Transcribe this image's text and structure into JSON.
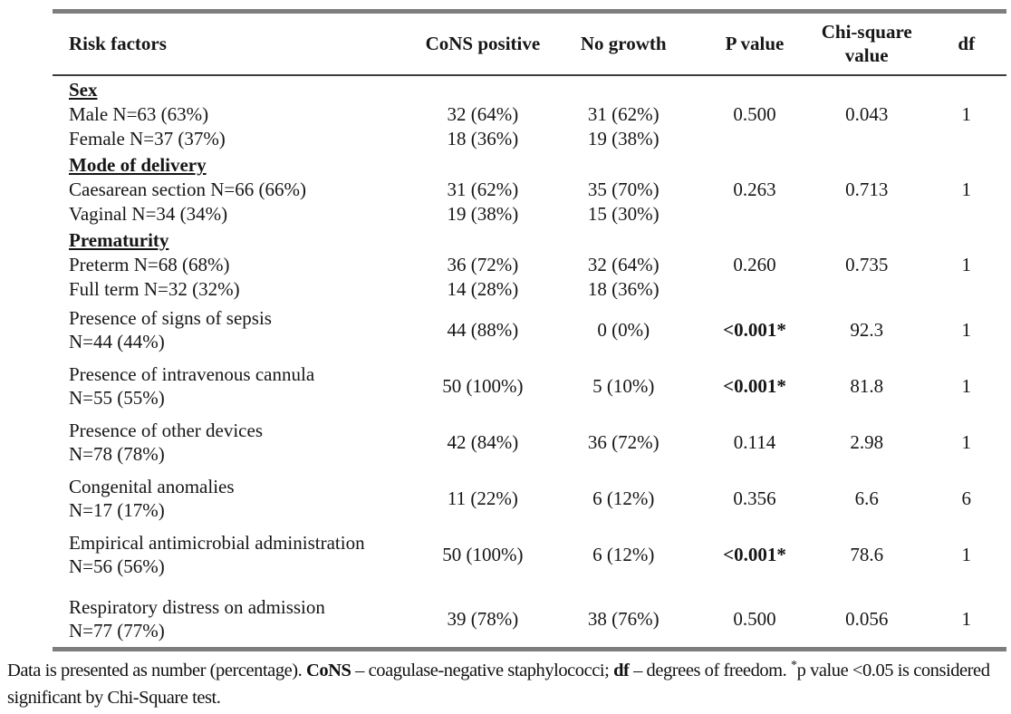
{
  "table": {
    "columns": [
      "Risk factors",
      "CoNS positive",
      "No growth",
      "P value",
      "Chi-square value",
      "df"
    ],
    "rows": [
      {
        "type": "section",
        "label": "Sex"
      },
      {
        "type": "data",
        "label": "Male N=63 (63%)",
        "cons": "32 (64%)",
        "nogrowth": "31 (62%)",
        "p": "0.500",
        "chi": "0.043",
        "df": "1"
      },
      {
        "type": "data",
        "label": "Female N=37 (37%)",
        "cons": "18 (36%)",
        "nogrowth": "19 (38%)",
        "p": "",
        "chi": "",
        "df": ""
      },
      {
        "type": "section",
        "label": "Mode of delivery"
      },
      {
        "type": "data",
        "label": "Caesarean section N=66 (66%)",
        "cons": "31 (62%)",
        "nogrowth": "35 (70%)",
        "p": "0.263",
        "chi": "0.713",
        "df": "1"
      },
      {
        "type": "data",
        "label": "Vaginal N=34 (34%)",
        "cons": "19 (38%)",
        "nogrowth": "15 (30%)",
        "p": "",
        "chi": "",
        "df": ""
      },
      {
        "type": "section",
        "label": "Prematurity"
      },
      {
        "type": "data",
        "label": "Preterm N=68 (68%)",
        "cons": "36 (72%)",
        "nogrowth": "32 (64%)",
        "p": "0.260",
        "chi": "0.735",
        "df": "1"
      },
      {
        "type": "data",
        "label": "Full term N=32 (32%)",
        "cons": "14 (28%)",
        "nogrowth": "18 (36%)",
        "p": "",
        "chi": "",
        "df": ""
      },
      {
        "type": "data",
        "lines": [
          "Presence of signs of sepsis",
          "N=44 (44%)"
        ],
        "cons": "44 (88%)",
        "nogrowth": "0 (0%)",
        "p": "<0.001*",
        "p_bold": true,
        "chi": "92.3",
        "df": "1"
      },
      {
        "type": "data",
        "lines": [
          "Presence of intravenous cannula",
          "N=55 (55%)"
        ],
        "cons": "50 (100%)",
        "nogrowth": "5 (10%)",
        "p": "<0.001*",
        "p_bold": true,
        "chi": "81.8",
        "df": "1"
      },
      {
        "type": "data",
        "lines": [
          "Presence of other devices",
          "N=78 (78%)"
        ],
        "cons": "42 (84%)",
        "nogrowth": "36 (72%)",
        "p": "0.114",
        "chi": "2.98",
        "df": "1"
      },
      {
        "type": "data",
        "lines": [
          "Congenital anomalies",
          "N=17 (17%)"
        ],
        "cons": "11 (22%)",
        "nogrowth": "6 (12%)",
        "p": "0.356",
        "chi": "6.6",
        "df": "6"
      },
      {
        "type": "data",
        "lines": [
          "Empirical antimicrobial administration",
          "N=56 (56%)"
        ],
        "cons": "50 (100%)",
        "nogrowth": "6 (12%)",
        "p": "<0.001*",
        "p_bold": true,
        "chi": "78.6",
        "df": "1"
      },
      {
        "type": "data",
        "gap_top": true,
        "lines": [
          "Respiratory distress on admission",
          "N=77 (77%)"
        ],
        "cons": "39 (78%)",
        "nogrowth": "38 (76%)",
        "p": "0.500",
        "chi": "0.056",
        "df": "1"
      }
    ]
  },
  "footnote": {
    "segment_1": "Data is presented as number (percentage). ",
    "term_cons": "CoNS",
    "segment_2": " – coagulase-negative staphylococci; ",
    "term_df": "df",
    "segment_3": " – degrees of freedom. ",
    "asterisk": "*",
    "segment_4": "p value <0.05 is considered significant by Chi-Square test."
  },
  "colors": {
    "thick_rule": "#7e7e7e",
    "thin_rule": "#3c3c3c",
    "text": "#161616"
  }
}
